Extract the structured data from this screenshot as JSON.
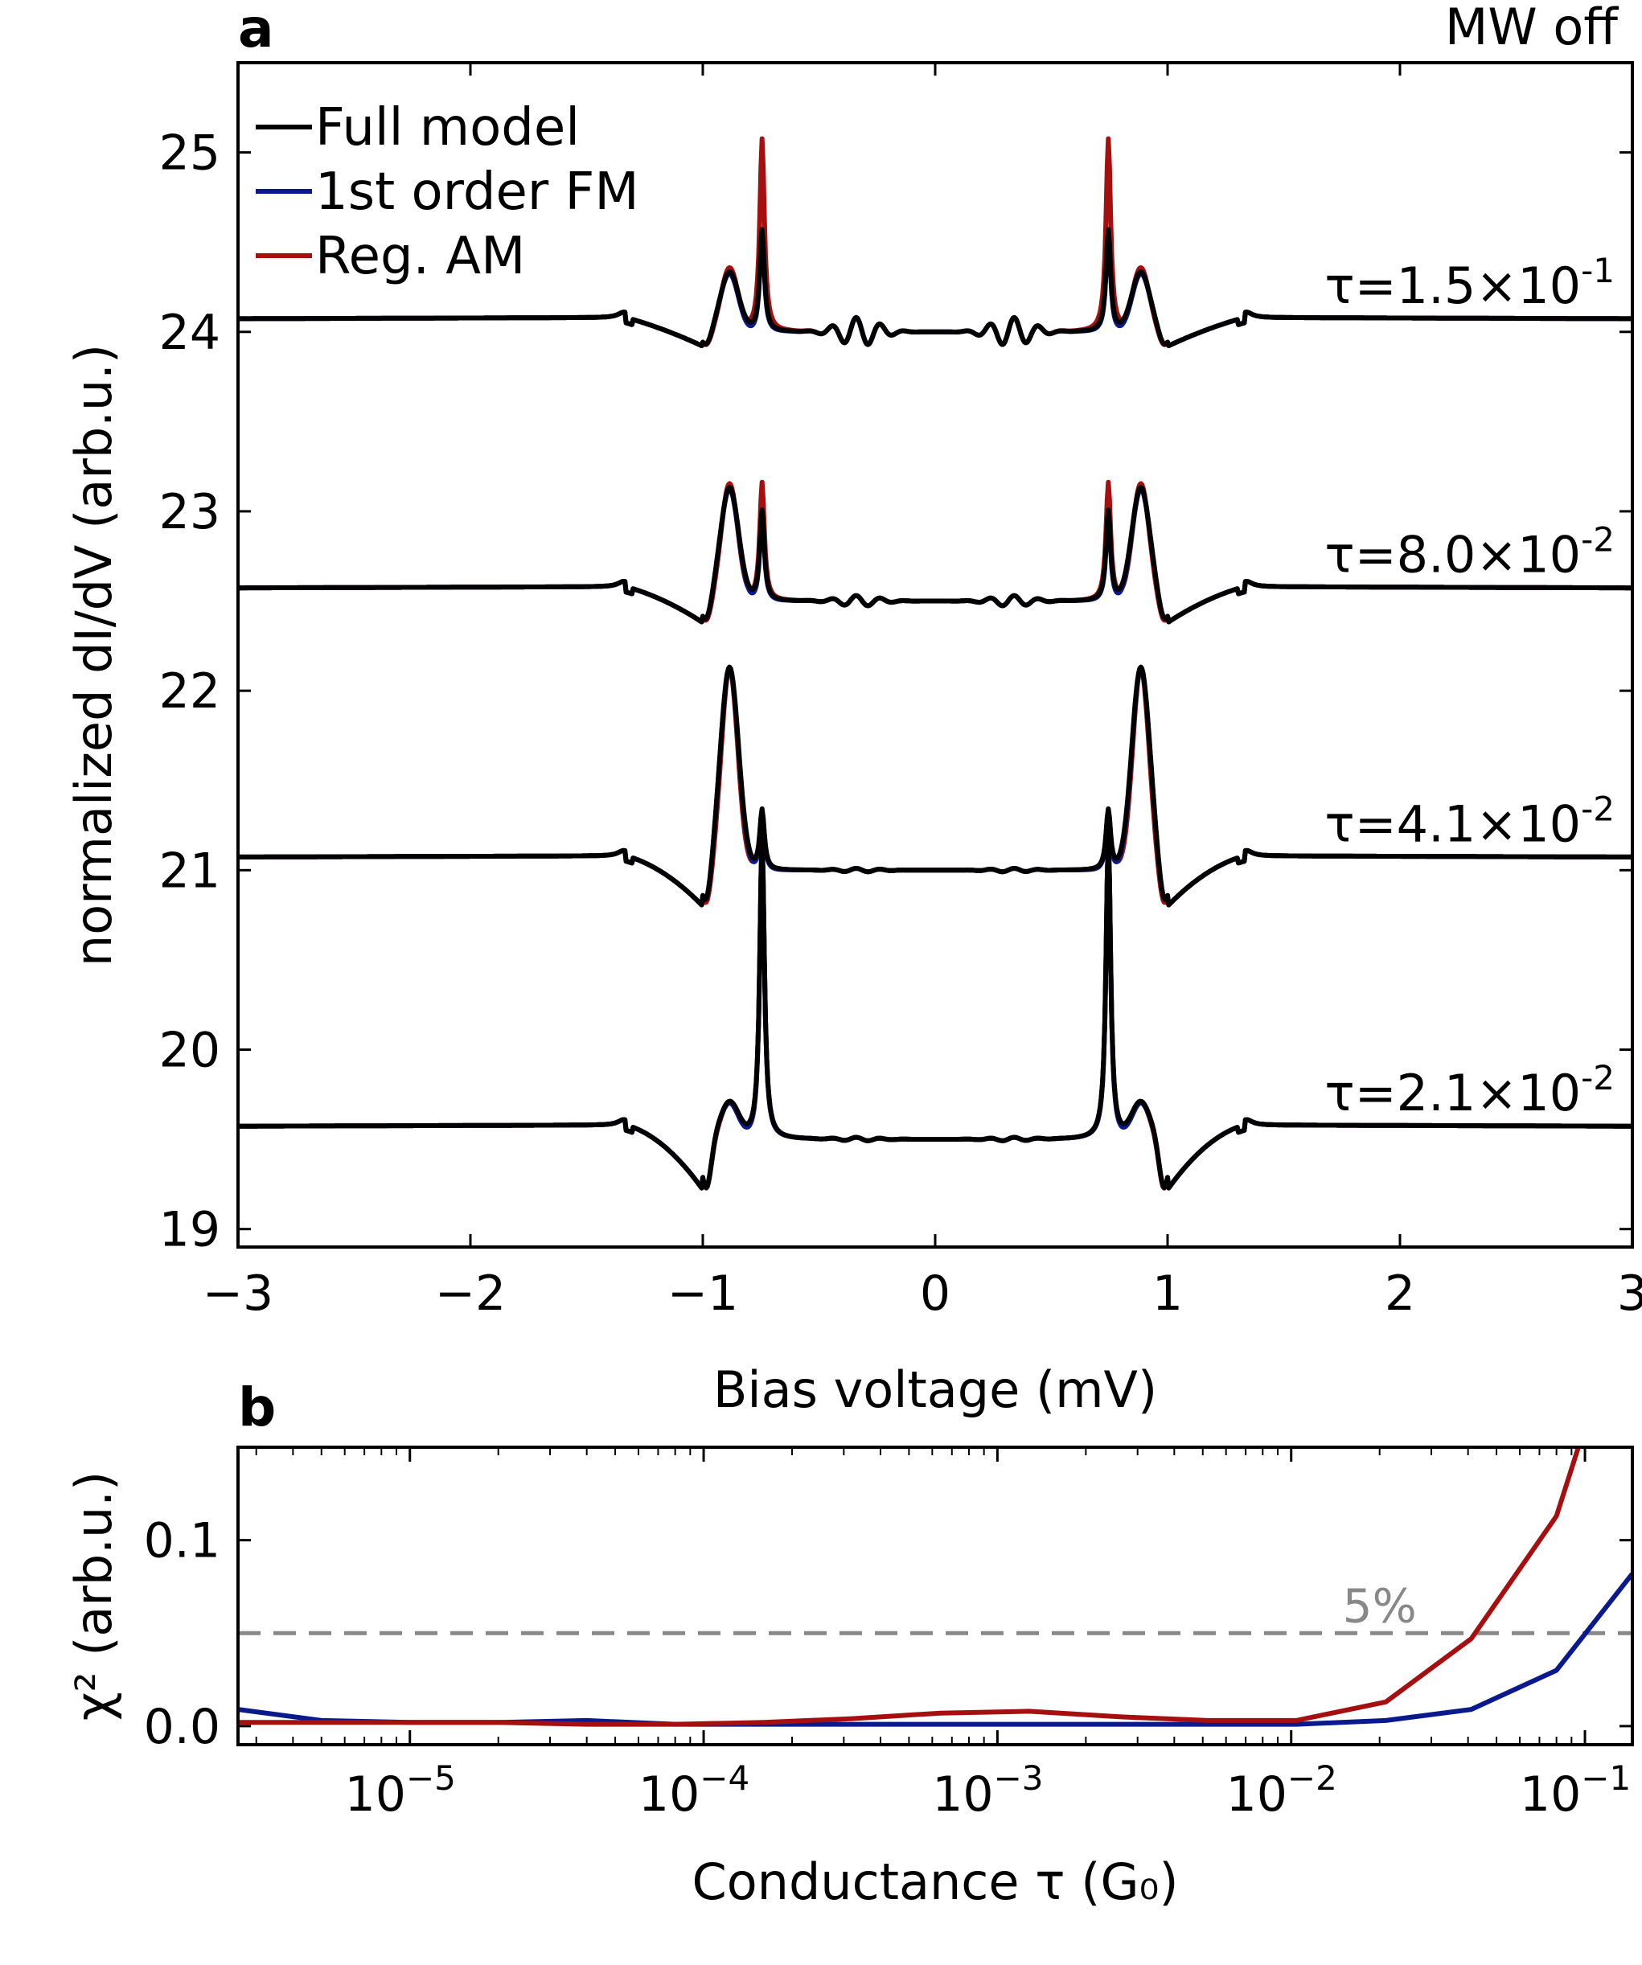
{
  "panel_a": {
    "panel_label": "a",
    "corner_text": "MW off"
  },
  "panel_b": {
    "panel_label": "b",
    "threshold_label": "5%"
  },
  "colors": {
    "full_model": "#000000",
    "first_order_fm": "#0a1a8c",
    "reg_am": "#a50f0f",
    "threshold": "#888888"
  },
  "chart_data": [
    {
      "type": "line",
      "panel": "a",
      "xlabel": "Bias voltage (mV)",
      "ylabel": "normalized dI/dV (arb.u.)",
      "xlim": [
        -3,
        3
      ],
      "ylim": [
        18.9,
        25.5
      ],
      "xticks": [
        -3,
        -2,
        -1,
        0,
        1,
        2,
        3
      ],
      "xticklabels": [
        "−3",
        "−2",
        "−1",
        "0",
        "1",
        "2",
        "3"
      ],
      "yticks": [
        19,
        20,
        21,
        22,
        23,
        24,
        25
      ],
      "yticklabels": [
        "19",
        "20",
        "21",
        "22",
        "23",
        "24",
        "25"
      ],
      "legend": {
        "position": "top-left",
        "entries": [
          "Full model",
          "1st order FM",
          "Reg. AM"
        ]
      },
      "curves": [
        {
          "tau": "τ=1.5×10",
          "tau_exp": "-1",
          "offset": 24.0,
          "baseline": 24.08,
          "peak_full": 24.62,
          "peak_am": 25.17,
          "hump_full": 24.33,
          "hump_am": 24.35,
          "dip": 23.92,
          "gap_ripple": 0.08
        },
        {
          "tau": "τ=8.0×10",
          "tau_exp": "-2",
          "offset": 22.5,
          "baseline": 22.58,
          "peak_full": 23.05,
          "peak_am": 23.22,
          "hump_full": 23.13,
          "hump_am": 23.15,
          "dip": 22.38,
          "gap_ripple": 0.03
        },
        {
          "tau": "τ=4.1×10",
          "tau_exp": "-2",
          "offset": 21.0,
          "baseline": 21.08,
          "peak_full": 21.37,
          "peak_am": 21.37,
          "hump_full": 22.13,
          "hump_am": 22.12,
          "dip": 20.8,
          "gap_ripple": 0.01
        },
        {
          "tau": "τ=2.1×10",
          "tau_exp": "-2",
          "offset": 19.5,
          "baseline": 19.58,
          "peak_full": 21.35,
          "peak_am": 21.35,
          "hump_full": 19.7,
          "hump_am": 19.7,
          "dip": 19.22,
          "gap_ripple": 0.01
        }
      ]
    },
    {
      "type": "line",
      "panel": "b",
      "xlabel": "Conductance τ (G₀)",
      "ylabel": "χ² (arb.u.)",
      "xscale": "log",
      "xlim": [
        2.6e-06,
        0.145
      ],
      "ylim": [
        -0.01,
        0.15
      ],
      "yticks": [
        0.0,
        0.1
      ],
      "yticklabels": [
        "0.0",
        "0.1"
      ],
      "xticks_major": [
        1e-05,
        0.0001,
        0.001,
        0.01,
        0.1
      ],
      "xticklabels": [
        "10",
        "10",
        "10",
        "10",
        "10"
      ],
      "xtick_exponents": [
        "−5",
        "−4",
        "−3",
        "−2",
        "−1"
      ],
      "threshold": 0.05,
      "series": [
        {
          "name": "1st order FM",
          "x": [
            2.6e-06,
            5e-06,
            1e-05,
            2e-05,
            4e-05,
            8e-05,
            0.00016,
            0.00032,
            0.00064,
            0.00128,
            0.0026,
            0.0052,
            0.0104,
            0.021,
            0.041,
            0.08,
            0.145
          ],
          "y": [
            0.009,
            0.003,
            0.002,
            0.002,
            0.003,
            0.001,
            0.001,
            0.001,
            0.001,
            0.001,
            0.001,
            0.001,
            0.001,
            0.003,
            0.009,
            0.03,
            0.082
          ]
        },
        {
          "name": "Reg. AM",
          "x": [
            2.6e-06,
            5e-06,
            1e-05,
            2e-05,
            4e-05,
            8e-05,
            0.00016,
            0.00032,
            0.00064,
            0.00128,
            0.0026,
            0.0052,
            0.0104,
            0.021,
            0.041,
            0.08,
            0.095
          ],
          "y": [
            0.002,
            0.002,
            0.002,
            0.002,
            0.001,
            0.001,
            0.002,
            0.004,
            0.007,
            0.008,
            0.005,
            0.003,
            0.003,
            0.013,
            0.047,
            0.113,
            0.15
          ]
        }
      ]
    }
  ]
}
